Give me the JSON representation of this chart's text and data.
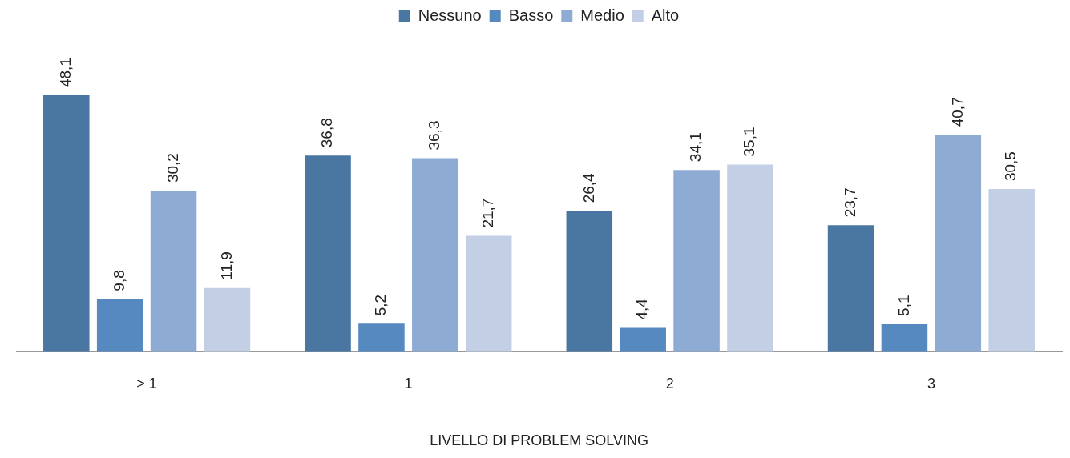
{
  "chart_data": {
    "type": "bar",
    "xlabel": "LIVELLO DI PROBLEM SOLVING",
    "categories": [
      "> 1",
      "1",
      "2",
      "3"
    ],
    "series": [
      {
        "name": "Nessuno",
        "color": "#4a76a2",
        "values": [
          48.1,
          36.8,
          26.4,
          23.7
        ],
        "value_labels": [
          "48,1",
          "36,8",
          "26,4",
          "23,7"
        ]
      },
      {
        "name": "Basso",
        "color": "#5589bf",
        "values": [
          9.8,
          5.2,
          4.4,
          5.1
        ],
        "value_labels": [
          "9,8",
          "5,2",
          "4,4",
          "5,1"
        ]
      },
      {
        "name": "Medio",
        "color": "#8eabd3",
        "values": [
          30.2,
          36.3,
          34.1,
          40.7
        ],
        "value_labels": [
          "30,2",
          "36,3",
          "34,1",
          "40,7"
        ]
      },
      {
        "name": "Alto",
        "color": "#c3cfe5",
        "values": [
          11.9,
          21.7,
          35.1,
          30.5
        ],
        "value_labels": [
          "11,9",
          "21,7",
          "35,1",
          "30,5"
        ]
      }
    ],
    "legend": "top",
    "grid": false
  }
}
